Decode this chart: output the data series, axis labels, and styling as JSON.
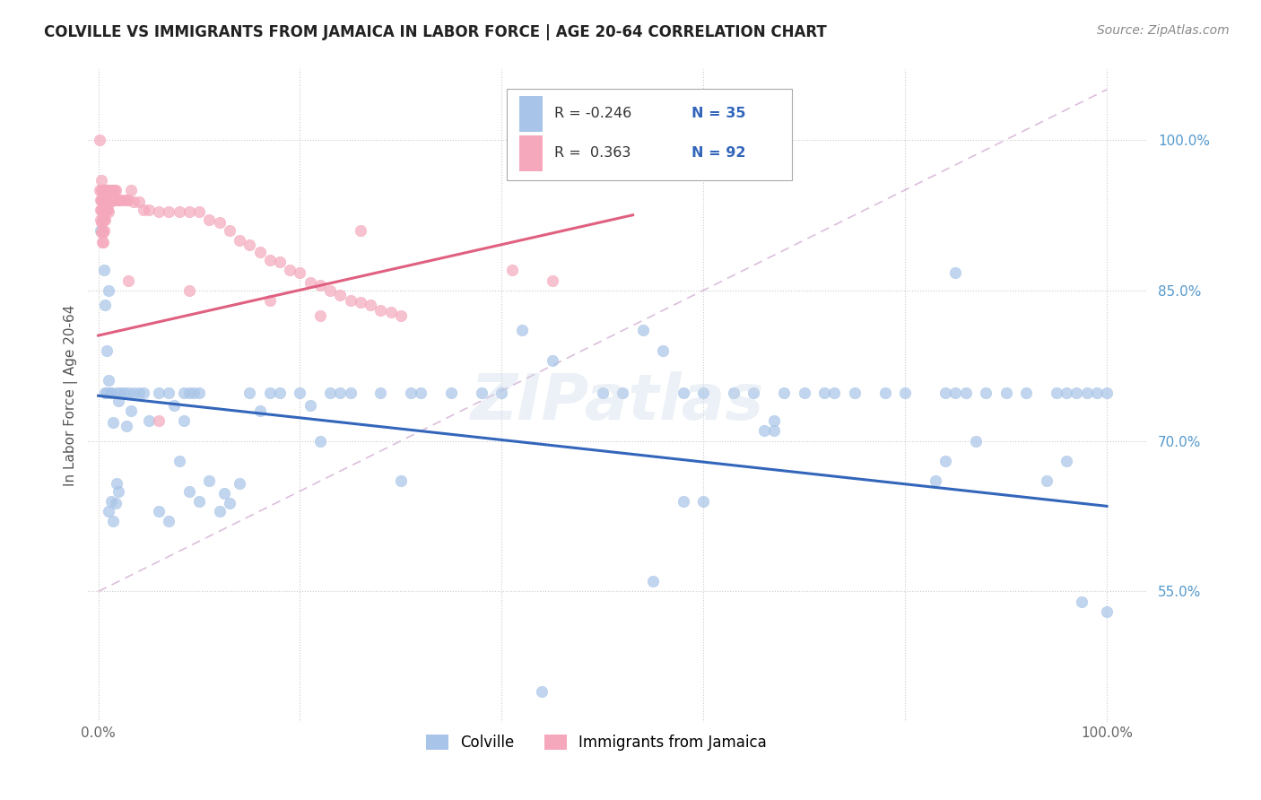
{
  "title": "COLVILLE VS IMMIGRANTS FROM JAMAICA IN LABOR FORCE | AGE 20-64 CORRELATION CHART",
  "source": "Source: ZipAtlas.com",
  "ylabel": "In Labor Force | Age 20-64",
  "xlim": [
    -0.01,
    1.04
  ],
  "ylim": [
    0.42,
    1.07
  ],
  "x_ticks": [
    0.0,
    0.2,
    0.4,
    0.6,
    0.8,
    1.0
  ],
  "x_tick_labels": [
    "0.0%",
    "",
    "",
    "",
    "",
    "100.0%"
  ],
  "y_tick_labels_right": [
    "55.0%",
    "70.0%",
    "85.0%",
    "100.0%"
  ],
  "y_tick_positions_right": [
    0.55,
    0.7,
    0.85,
    1.0
  ],
  "colville_color": "#a8c4e8",
  "jamaica_color": "#f5a8bc",
  "colville_line_color": "#3366bb",
  "jamaica_line_color": "#e06080",
  "dashed_line_color": "#d8b8d8",
  "watermark": "ZIPatlas",
  "colville_trendline": [
    [
      0.0,
      0.745
    ],
    [
      1.0,
      0.635
    ]
  ],
  "jamaica_trendline": [
    [
      0.0,
      0.805
    ],
    [
      0.53,
      0.925
    ]
  ],
  "dashed_line": [
    [
      0.0,
      0.55
    ],
    [
      1.0,
      1.05
    ]
  ],
  "colville_scatter": [
    [
      0.002,
      0.91
    ],
    [
      0.006,
      0.87
    ],
    [
      0.007,
      0.835
    ],
    [
      0.008,
      0.79
    ],
    [
      0.01,
      0.76
    ],
    [
      0.01,
      0.85
    ],
    [
      0.012,
      0.748
    ],
    [
      0.013,
      0.748
    ],
    [
      0.015,
      0.718
    ],
    [
      0.018,
      0.748
    ],
    [
      0.02,
      0.74
    ],
    [
      0.022,
      0.748
    ],
    [
      0.025,
      0.748
    ],
    [
      0.028,
      0.715
    ],
    [
      0.03,
      0.748
    ],
    [
      0.032,
      0.73
    ],
    [
      0.035,
      0.748
    ],
    [
      0.04,
      0.748
    ],
    [
      0.045,
      0.748
    ],
    [
      0.05,
      0.72
    ],
    [
      0.06,
      0.748
    ],
    [
      0.07,
      0.748
    ],
    [
      0.08,
      0.68
    ],
    [
      0.085,
      0.748
    ],
    [
      0.09,
      0.748
    ],
    [
      0.1,
      0.748
    ],
    [
      0.11,
      0.66
    ],
    [
      0.12,
      0.63
    ],
    [
      0.125,
      0.648
    ],
    [
      0.13,
      0.638
    ],
    [
      0.14,
      0.658
    ],
    [
      0.15,
      0.748
    ],
    [
      0.16,
      0.73
    ],
    [
      0.17,
      0.748
    ],
    [
      0.18,
      0.748
    ],
    [
      0.2,
      0.748
    ],
    [
      0.21,
      0.735
    ],
    [
      0.22,
      0.7
    ],
    [
      0.23,
      0.748
    ],
    [
      0.24,
      0.748
    ],
    [
      0.25,
      0.748
    ],
    [
      0.28,
      0.748
    ],
    [
      0.3,
      0.66
    ],
    [
      0.31,
      0.748
    ],
    [
      0.32,
      0.748
    ],
    [
      0.35,
      0.748
    ],
    [
      0.38,
      0.748
    ],
    [
      0.4,
      0.748
    ],
    [
      0.42,
      0.81
    ],
    [
      0.45,
      0.78
    ],
    [
      0.5,
      0.748
    ],
    [
      0.52,
      0.748
    ],
    [
      0.54,
      0.81
    ],
    [
      0.56,
      0.79
    ],
    [
      0.58,
      0.748
    ],
    [
      0.6,
      0.748
    ],
    [
      0.63,
      0.748
    ],
    [
      0.65,
      0.748
    ],
    [
      0.67,
      0.72
    ],
    [
      0.68,
      0.748
    ],
    [
      0.7,
      0.748
    ],
    [
      0.72,
      0.748
    ],
    [
      0.73,
      0.748
    ],
    [
      0.75,
      0.748
    ],
    [
      0.78,
      0.748
    ],
    [
      0.8,
      0.748
    ],
    [
      0.83,
      0.66
    ],
    [
      0.84,
      0.748
    ],
    [
      0.85,
      0.748
    ],
    [
      0.86,
      0.748
    ],
    [
      0.87,
      0.7
    ],
    [
      0.88,
      0.748
    ],
    [
      0.9,
      0.748
    ],
    [
      0.92,
      0.748
    ],
    [
      0.94,
      0.66
    ],
    [
      0.95,
      0.748
    ],
    [
      0.96,
      0.748
    ],
    [
      0.97,
      0.748
    ],
    [
      0.98,
      0.748
    ],
    [
      0.99,
      0.748
    ],
    [
      1.0,
      0.748
    ],
    [
      0.55,
      0.56
    ],
    [
      0.85,
      0.868
    ],
    [
      0.58,
      0.64
    ],
    [
      0.6,
      0.64
    ],
    [
      0.66,
      0.71
    ],
    [
      0.67,
      0.71
    ],
    [
      0.84,
      0.68
    ],
    [
      0.96,
      0.68
    ],
    [
      0.975,
      0.54
    ],
    [
      1.0,
      0.53
    ],
    [
      0.01,
      0.63
    ],
    [
      0.013,
      0.64
    ],
    [
      0.015,
      0.62
    ],
    [
      0.017,
      0.638
    ],
    [
      0.018,
      0.658
    ],
    [
      0.02,
      0.65
    ],
    [
      0.06,
      0.63
    ],
    [
      0.07,
      0.62
    ],
    [
      0.09,
      0.65
    ],
    [
      0.1,
      0.64
    ],
    [
      0.007,
      0.748
    ],
    [
      0.008,
      0.748
    ],
    [
      0.075,
      0.735
    ],
    [
      0.085,
      0.72
    ],
    [
      0.095,
      0.748
    ],
    [
      0.44,
      0.45
    ]
  ],
  "jamaica_scatter": [
    [
      0.001,
      1.0
    ],
    [
      0.032,
      0.95
    ],
    [
      0.26,
      0.91
    ],
    [
      0.003,
      0.96
    ],
    [
      0.001,
      0.95
    ],
    [
      0.002,
      0.94
    ],
    [
      0.002,
      0.93
    ],
    [
      0.002,
      0.92
    ],
    [
      0.003,
      0.95
    ],
    [
      0.003,
      0.94
    ],
    [
      0.003,
      0.93
    ],
    [
      0.003,
      0.918
    ],
    [
      0.003,
      0.908
    ],
    [
      0.004,
      0.95
    ],
    [
      0.004,
      0.94
    ],
    [
      0.004,
      0.93
    ],
    [
      0.004,
      0.92
    ],
    [
      0.004,
      0.91
    ],
    [
      0.004,
      0.898
    ],
    [
      0.005,
      0.95
    ],
    [
      0.005,
      0.94
    ],
    [
      0.005,
      0.93
    ],
    [
      0.005,
      0.92
    ],
    [
      0.005,
      0.908
    ],
    [
      0.005,
      0.898
    ],
    [
      0.006,
      0.95
    ],
    [
      0.006,
      0.94
    ],
    [
      0.006,
      0.93
    ],
    [
      0.006,
      0.92
    ],
    [
      0.006,
      0.91
    ],
    [
      0.007,
      0.95
    ],
    [
      0.007,
      0.94
    ],
    [
      0.007,
      0.93
    ],
    [
      0.007,
      0.92
    ],
    [
      0.008,
      0.95
    ],
    [
      0.008,
      0.94
    ],
    [
      0.008,
      0.93
    ],
    [
      0.009,
      0.95
    ],
    [
      0.009,
      0.94
    ],
    [
      0.009,
      0.93
    ],
    [
      0.01,
      0.95
    ],
    [
      0.01,
      0.938
    ],
    [
      0.01,
      0.928
    ],
    [
      0.011,
      0.95
    ],
    [
      0.011,
      0.938
    ],
    [
      0.012,
      0.95
    ],
    [
      0.012,
      0.938
    ],
    [
      0.013,
      0.95
    ],
    [
      0.014,
      0.95
    ],
    [
      0.015,
      0.95
    ],
    [
      0.016,
      0.95
    ],
    [
      0.017,
      0.95
    ],
    [
      0.018,
      0.94
    ],
    [
      0.019,
      0.94
    ],
    [
      0.02,
      0.94
    ],
    [
      0.022,
      0.94
    ],
    [
      0.025,
      0.94
    ],
    [
      0.028,
      0.94
    ],
    [
      0.03,
      0.94
    ],
    [
      0.035,
      0.938
    ],
    [
      0.04,
      0.938
    ],
    [
      0.045,
      0.93
    ],
    [
      0.05,
      0.93
    ],
    [
      0.06,
      0.928
    ],
    [
      0.07,
      0.928
    ],
    [
      0.08,
      0.928
    ],
    [
      0.09,
      0.928
    ],
    [
      0.1,
      0.928
    ],
    [
      0.11,
      0.92
    ],
    [
      0.12,
      0.918
    ],
    [
      0.13,
      0.91
    ],
    [
      0.14,
      0.9
    ],
    [
      0.15,
      0.895
    ],
    [
      0.16,
      0.888
    ],
    [
      0.17,
      0.88
    ],
    [
      0.18,
      0.878
    ],
    [
      0.19,
      0.87
    ],
    [
      0.2,
      0.868
    ],
    [
      0.21,
      0.858
    ],
    [
      0.22,
      0.855
    ],
    [
      0.23,
      0.85
    ],
    [
      0.24,
      0.845
    ],
    [
      0.25,
      0.84
    ],
    [
      0.26,
      0.838
    ],
    [
      0.27,
      0.835
    ],
    [
      0.28,
      0.83
    ],
    [
      0.29,
      0.828
    ],
    [
      0.3,
      0.825
    ],
    [
      0.41,
      0.87
    ],
    [
      0.45,
      0.86
    ],
    [
      0.03,
      0.86
    ],
    [
      0.06,
      0.72
    ],
    [
      0.09,
      0.85
    ],
    [
      0.17,
      0.84
    ],
    [
      0.22,
      0.825
    ]
  ]
}
